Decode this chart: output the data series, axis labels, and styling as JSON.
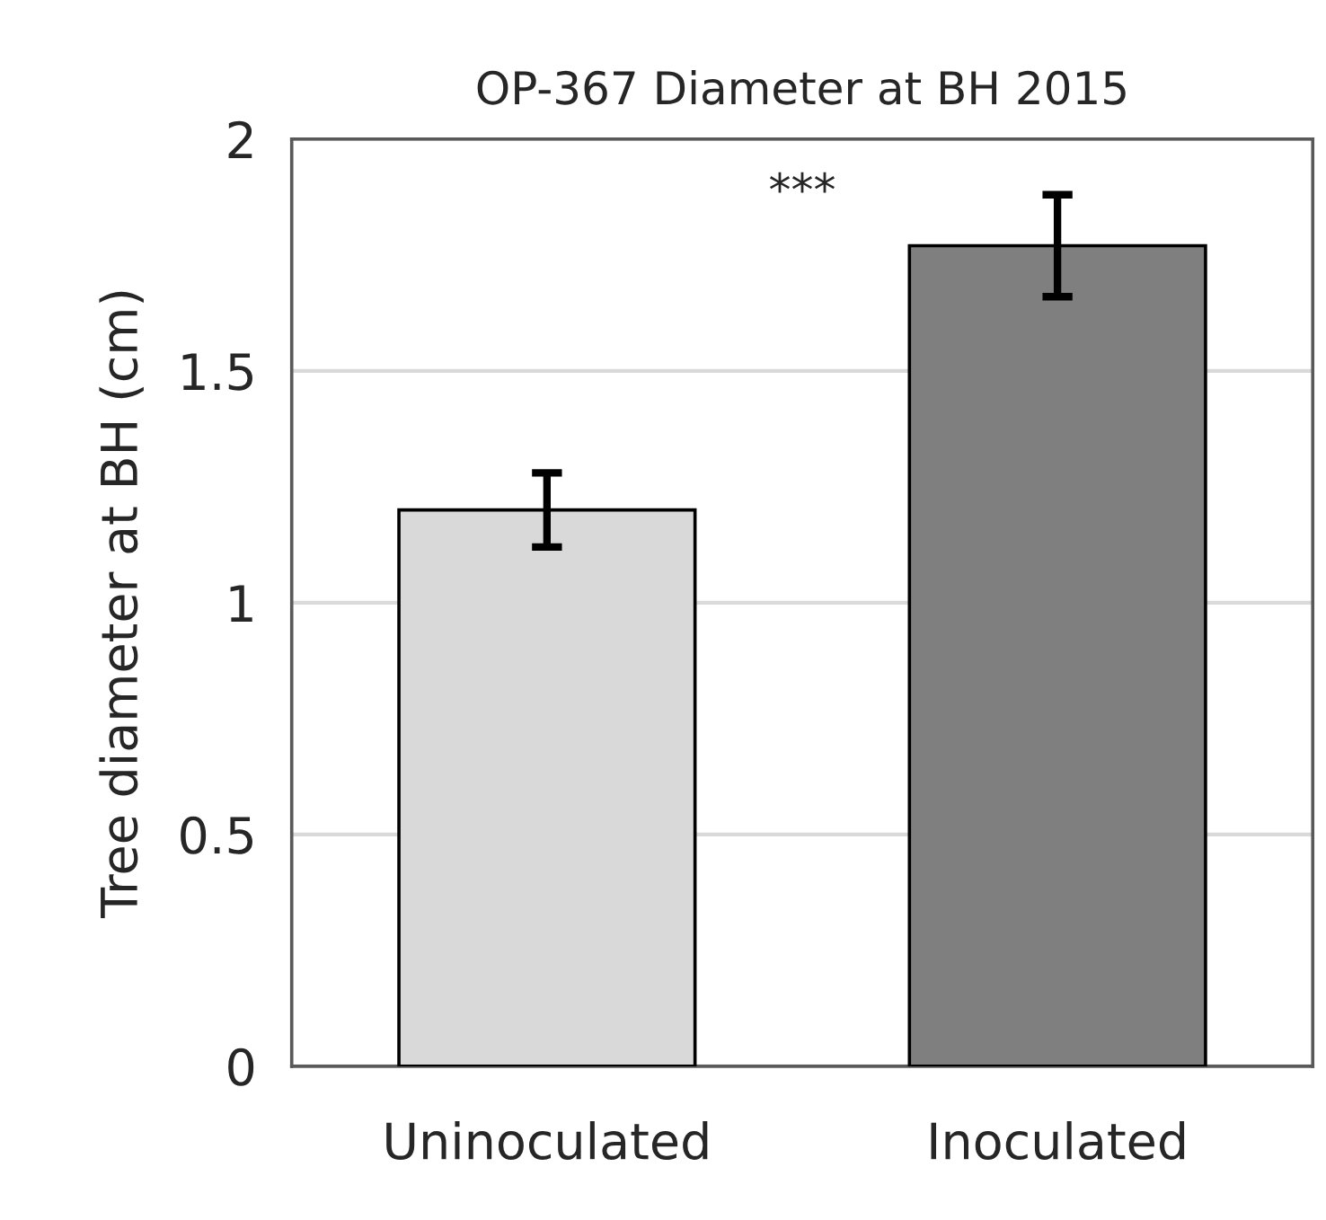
{
  "chart_data": {
    "type": "bar",
    "title": "OP-367 Diameter at BH 2015",
    "ylabel": "Tree diameter at BH (cm)",
    "categories": [
      "Uninoculated",
      "Inoculated"
    ],
    "values": [
      1.2,
      1.77
    ],
    "errors": [
      0.08,
      0.11
    ],
    "colors": [
      "#d9d9d9",
      "#7f7f7f"
    ],
    "ylim": [
      0,
      2
    ],
    "yticks": [
      0,
      0.5,
      1,
      1.5,
      2
    ],
    "grid": "y",
    "annotations": [
      "***"
    ]
  }
}
